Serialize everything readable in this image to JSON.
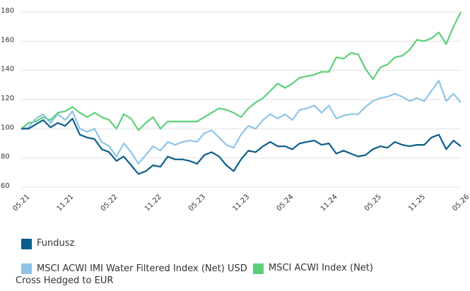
{
  "chart_data": {
    "type": "line",
    "categories": [
      "05.21",
      null,
      null,
      null,
      null,
      null,
      "11.21",
      null,
      null,
      null,
      null,
      null,
      "05.22",
      null,
      null,
      null,
      null,
      null,
      "11.22",
      null,
      null,
      null,
      null,
      null,
      "05.23",
      null,
      null,
      null,
      null,
      null,
      "11.23",
      null,
      null,
      null,
      null,
      null,
      "05.24",
      null,
      null,
      null,
      null,
      null,
      "11.24",
      null,
      null,
      null,
      null,
      null,
      "05.25",
      null,
      null,
      null,
      null,
      null,
      "11.25",
      null,
      null,
      null,
      null,
      null,
      "05.26"
    ],
    "series": [
      {
        "name": "Fundusz",
        "color": "#0b5d8c",
        "values": [
          100,
          100,
          103,
          106,
          101,
          104,
          102,
          107,
          96,
          94,
          93,
          86,
          84,
          78,
          81,
          75,
          69,
          71,
          75,
          74,
          81,
          79,
          79,
          78,
          76,
          82,
          84,
          81,
          75,
          71,
          79,
          85,
          84,
          88,
          91,
          88,
          88,
          86,
          90,
          91,
          92,
          89,
          90,
          83,
          85,
          83,
          81,
          82,
          86,
          88,
          87,
          91,
          89,
          88,
          89,
          89,
          94,
          96,
          86,
          92,
          88
        ]
      },
      {
        "name": "MSCI ACWI IMI Water Filtered Index (Net) USD Cross Hedged to EUR",
        "color": "#8ec4e8",
        "values": [
          100,
          101,
          107,
          110,
          104,
          110,
          106,
          112,
          100,
          98,
          100,
          91,
          88,
          81,
          90,
          84,
          76,
          82,
          88,
          85,
          91,
          89,
          91,
          92,
          91,
          97,
          99,
          94,
          89,
          87,
          96,
          102,
          100,
          106,
          110,
          107,
          110,
          106,
          113,
          114,
          116,
          111,
          116,
          107,
          109,
          110,
          110,
          115,
          119,
          121,
          122,
          124,
          122,
          119,
          121,
          119,
          126,
          133,
          119,
          124,
          118
        ]
      },
      {
        "name": "MSCI ACWI Index (Net)",
        "color": "#5ccf78",
        "values": [
          100,
          104,
          105,
          108,
          106,
          111,
          112,
          115,
          111,
          108,
          111,
          108,
          106,
          100,
          110,
          107,
          99,
          104,
          108,
          100,
          105,
          105,
          105,
          105,
          105,
          108,
          111,
          114,
          113,
          111,
          108,
          114,
          118,
          121,
          126,
          131,
          128,
          131,
          135,
          136,
          137,
          139,
          139,
          149,
          148,
          152,
          151,
          141,
          134,
          142,
          144,
          149,
          150,
          154,
          161,
          160,
          162,
          166,
          158,
          170,
          180
        ]
      }
    ],
    "ylim": [
      60,
      180
    ],
    "yticks": [
      60,
      80,
      100,
      120,
      140,
      160,
      180
    ],
    "grid": true
  }
}
